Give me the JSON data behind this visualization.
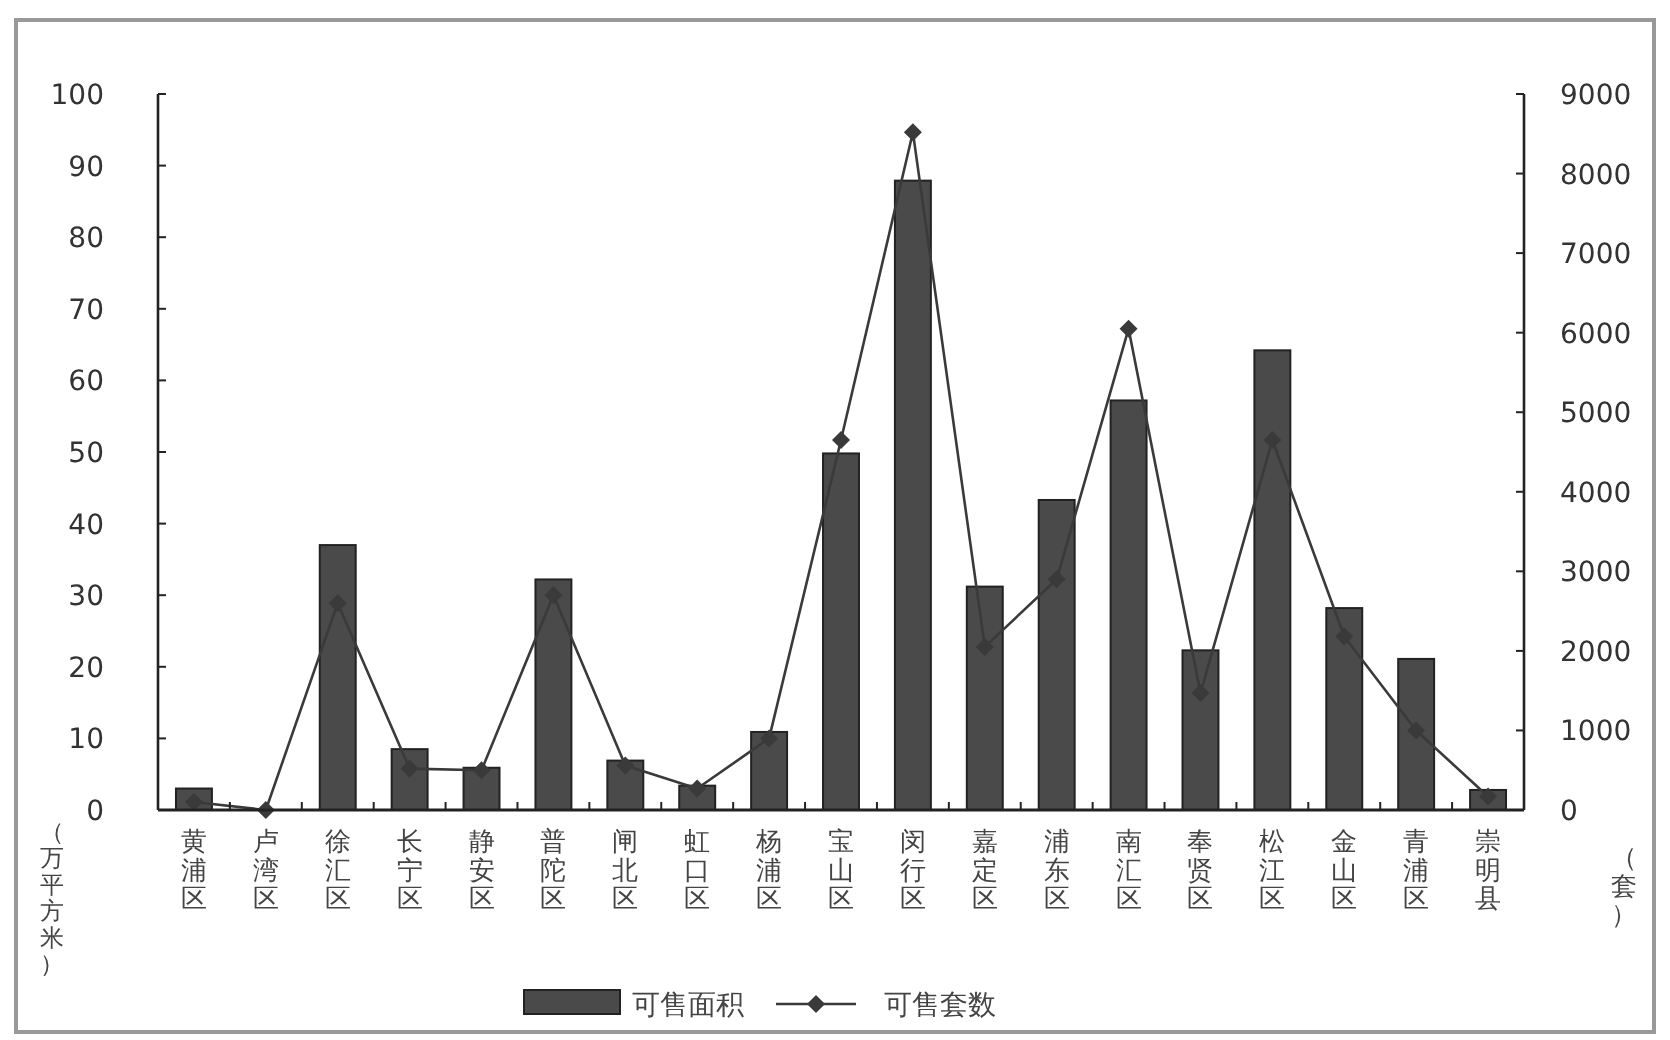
{
  "chart_data": {
    "type": "bar",
    "categories": [
      "黄浦区",
      "卢湾区",
      "徐汇区",
      "长宁区",
      "静安区",
      "普陀区",
      "闸北区",
      "虹口区",
      "杨浦区",
      "宝山区",
      "闵行区",
      "嘉定区",
      "浦东区",
      "南汇区",
      "奉贤区",
      "松江区",
      "金山区",
      "青浦区",
      "崇明县"
    ],
    "series": [
      {
        "name": "可售面积",
        "color": "#4a4a4a",
        "values": [
          3.0,
          null,
          37.0,
          8.5,
          5.9,
          32.2,
          6.9,
          3.4,
          10.9,
          49.8,
          87.9,
          31.2,
          43.3,
          57.2,
          22.3,
          64.2,
          28.2,
          21.1,
          2.8
        ]
      },
      {
        "name": "可售套数",
        "type": "line",
        "axis": "y2",
        "color": "#3a3a3a",
        "values": [
          100,
          0,
          2600,
          520,
          500,
          2700,
          560,
          270,
          900,
          4650,
          8520,
          2050,
          2900,
          6050,
          1470,
          4650,
          2180,
          1000,
          170
        ]
      }
    ],
    "ylabel": "（万平方米）",
    "y2label": "（套）",
    "ylim": [
      0,
      100
    ],
    "yticks": [
      0,
      10,
      20,
      30,
      40,
      50,
      60,
      70,
      80,
      90,
      100
    ],
    "y2lim": [
      0,
      9000
    ],
    "y2ticks": [
      0,
      1000,
      2000,
      3000,
      4000,
      5000,
      6000,
      7000,
      8000,
      9000
    ],
    "marker": "diamond",
    "legend": "bottom"
  }
}
